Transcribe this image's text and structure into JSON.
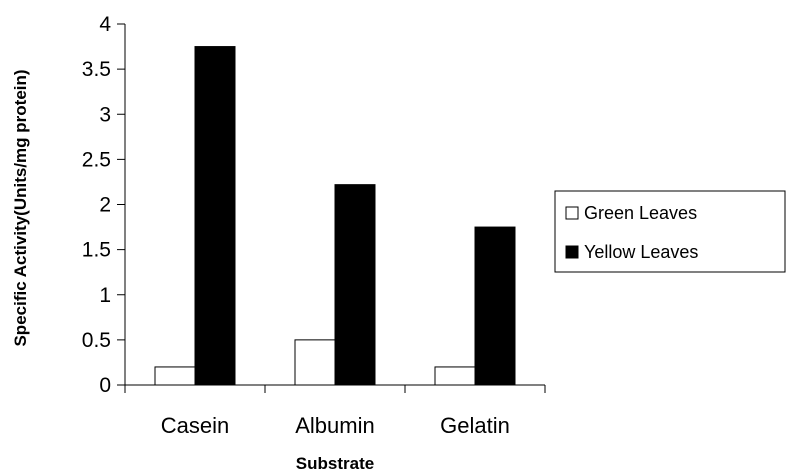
{
  "chart_data": {
    "type": "bar",
    "categories": [
      "Casein",
      "Albumin",
      "Gelatin"
    ],
    "series": [
      {
        "name": "Green Leaves",
        "values": [
          0.2,
          0.5,
          0.2
        ],
        "fill": "#ffffff",
        "stroke": "#000000"
      },
      {
        "name": "Yellow Leaves",
        "values": [
          3.75,
          2.22,
          1.75
        ],
        "fill": "#000000",
        "stroke": "#000000"
      }
    ],
    "title": "",
    "xlabel": "Substrate",
    "ylabel": "Specific Activity(Units/mg protein)",
    "ylim": [
      0,
      4
    ],
    "yticks": [
      "0",
      "0.5",
      "1",
      "1.5",
      "2",
      "2.5",
      "3",
      "3.5",
      "4"
    ],
    "grid": false,
    "legend_position": "right"
  }
}
